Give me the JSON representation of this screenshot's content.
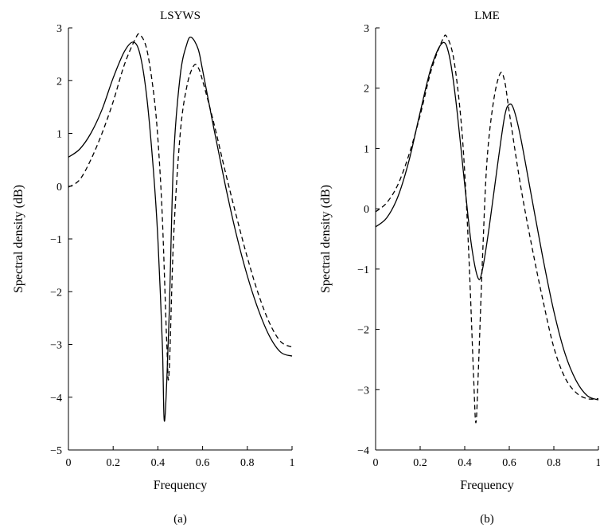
{
  "chart_data": [
    {
      "type": "line",
      "title": "LSYWS",
      "caption": "(a)",
      "xlabel": "Frequency",
      "ylabel": "Spectral density (dB)",
      "xlim": [
        0,
        1
      ],
      "ylim": [
        -5,
        3
      ],
      "xticks": [
        0,
        0.2,
        0.4,
        0.6,
        0.8,
        1
      ],
      "xtick_labels": [
        "0",
        "0.2",
        "0.4",
        "0.6",
        "0.8",
        "1"
      ],
      "yticks": [
        3,
        2,
        1,
        0,
        -1,
        -2,
        -3,
        -4,
        -5
      ],
      "ytick_labels": [
        "3",
        "2",
        "1",
        "0",
        "−1",
        "−2",
        "−3",
        "−4",
        "−5"
      ],
      "grid": false,
      "series": [
        {
          "style": "solid",
          "x": [
            0,
            0.05,
            0.1,
            0.15,
            0.2,
            0.25,
            0.29,
            0.32,
            0.35,
            0.38,
            0.4,
            0.42,
            0.43,
            0.45,
            0.47,
            0.5,
            0.53,
            0.55,
            0.58,
            0.6,
            0.65,
            0.7,
            0.75,
            0.8,
            0.85,
            0.9,
            0.95,
            1
          ],
          "y": [
            0.55,
            0.7,
            1.0,
            1.45,
            2.05,
            2.55,
            2.73,
            2.5,
            1.7,
            0.3,
            -1.0,
            -3.0,
            -4.45,
            -2.5,
            0.5,
            2.1,
            2.7,
            2.82,
            2.6,
            2.2,
            1.1,
            0.05,
            -0.9,
            -1.7,
            -2.35,
            -2.85,
            -3.15,
            -3.22
          ]
        },
        {
          "style": "dashed",
          "x": [
            0,
            0.05,
            0.1,
            0.15,
            0.2,
            0.25,
            0.3,
            0.32,
            0.35,
            0.38,
            0.4,
            0.42,
            0.44,
            0.45,
            0.47,
            0.5,
            0.53,
            0.56,
            0.58,
            0.6,
            0.65,
            0.7,
            0.75,
            0.8,
            0.85,
            0.9,
            0.95,
            1
          ],
          "y": [
            -0.02,
            0.12,
            0.5,
            1.0,
            1.6,
            2.3,
            2.8,
            2.87,
            2.6,
            1.8,
            0.9,
            -0.6,
            -3.0,
            -3.55,
            -1.0,
            1.0,
            1.9,
            2.28,
            2.25,
            2.0,
            1.2,
            0.3,
            -0.55,
            -1.35,
            -2.05,
            -2.6,
            -2.95,
            -3.05
          ]
        }
      ]
    },
    {
      "type": "line",
      "title": "LME",
      "caption": "(b)",
      "xlabel": "Frequency",
      "ylabel": "Spectral density (dB)",
      "xlim": [
        0,
        1
      ],
      "ylim": [
        -4,
        3
      ],
      "xticks": [
        0,
        0.2,
        0.4,
        0.6,
        0.8,
        1
      ],
      "xtick_labels": [
        "0",
        "0.2",
        "0.4",
        "0.6",
        "0.8",
        "1"
      ],
      "yticks": [
        3,
        2,
        1,
        0,
        -1,
        -2,
        -3,
        -4
      ],
      "ytick_labels": [
        "3",
        "2",
        "1",
        "0",
        "−1",
        "−2",
        "−3",
        "−4"
      ],
      "grid": false,
      "series": [
        {
          "style": "solid",
          "x": [
            0,
            0.05,
            0.1,
            0.15,
            0.2,
            0.25,
            0.3,
            0.33,
            0.36,
            0.4,
            0.43,
            0.46,
            0.48,
            0.51,
            0.55,
            0.58,
            0.6,
            0.62,
            0.65,
            0.7,
            0.75,
            0.8,
            0.85,
            0.9,
            0.95,
            1
          ],
          "y": [
            -0.3,
            -0.15,
            0.2,
            0.8,
            1.6,
            2.35,
            2.75,
            2.55,
            1.8,
            0.4,
            -0.6,
            -1.15,
            -1.0,
            -0.3,
            0.8,
            1.55,
            1.73,
            1.65,
            1.2,
            0.2,
            -0.8,
            -1.7,
            -2.4,
            -2.85,
            -3.1,
            -3.17
          ]
        },
        {
          "style": "dashed",
          "x": [
            0,
            0.05,
            0.1,
            0.15,
            0.2,
            0.25,
            0.3,
            0.32,
            0.35,
            0.38,
            0.4,
            0.42,
            0.44,
            0.45,
            0.46,
            0.48,
            0.5,
            0.53,
            0.56,
            0.58,
            0.6,
            0.65,
            0.7,
            0.75,
            0.8,
            0.85,
            0.9,
            0.95,
            1
          ],
          "y": [
            -0.05,
            0.1,
            0.4,
            0.9,
            1.55,
            2.3,
            2.8,
            2.85,
            2.5,
            1.6,
            0.6,
            -0.9,
            -2.8,
            -3.55,
            -2.8,
            -0.8,
            0.8,
            1.8,
            2.25,
            2.1,
            1.6,
            0.4,
            -0.6,
            -1.5,
            -2.3,
            -2.8,
            -3.05,
            -3.15,
            -3.15
          ]
        }
      ]
    }
  ]
}
